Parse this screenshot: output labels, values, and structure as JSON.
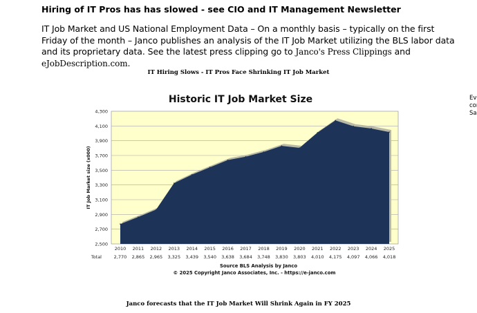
{
  "article": {
    "heading": "Hiring of IT Pros has has slowed - see CIO and IT Management Newsletter",
    "intro": "IT Job Market and US National Employment Data – On a monthly basis – typically on the first Friday of the month – Janco publishes an analysis of the IT Job Market utilizing the BLS labor data and its proprietary data. See the latest press clipping go to ",
    "link_press": "Janco's Press Clippings",
    "and_text": " and ",
    "link_jobdesc": "eJobDescription.com",
    "end_text": "."
  },
  "chart_caption": "IT Hiring Slows - IT Pros Face Shrinking IT Job Market",
  "side_text": [
    "Eve",
    "cor",
    "Sal"
  ],
  "footer_caption": "Janco forecasts that the IT Job Market Will Shrink Again in FY 2025",
  "colors": {
    "plot_bg": "#ffffcc",
    "area_fill": "#1d3358",
    "area_shadow": "#b9b9a8",
    "grid": "#a6a6a6"
  },
  "chart_data": {
    "type": "area",
    "title": "Historic IT Job Market Size",
    "ylabel": "IT Job Market size (x000)",
    "xlabel": "",
    "row_label": "Total",
    "source": "Source BLS Analysis by Janco",
    "copyright": "© 2025 Copyright Janco Associates, Inc. - https://e-janco.com",
    "ylim": [
      2500,
      4300
    ],
    "yticks": [
      "2,500",
      "2,700",
      "2,900",
      "3,100",
      "3,300",
      "3,500",
      "3,700",
      "3,900",
      "4,100",
      "4,300"
    ],
    "grid": true,
    "categories": [
      "2010",
      "2011",
      "2012",
      "2013",
      "2014",
      "2015",
      "2016",
      "2017",
      "2018",
      "2019",
      "2020",
      "2021",
      "2022",
      "2023",
      "2024",
      "2025"
    ],
    "values": [
      2770,
      2865,
      2965,
      3325,
      3439,
      3540,
      3638,
      3684,
      3748,
      3830,
      3803,
      4010,
      4175,
      4097,
      4066,
      4018
    ],
    "value_labels": [
      "2,770",
      "2,865",
      "2,965",
      "3,325",
      "3,439",
      "3,540",
      "3,638",
      "3,684",
      "3,748",
      "3,830",
      "3,803",
      "4,010",
      "4,175",
      "4,097",
      "4,066",
      "4,018"
    ]
  }
}
